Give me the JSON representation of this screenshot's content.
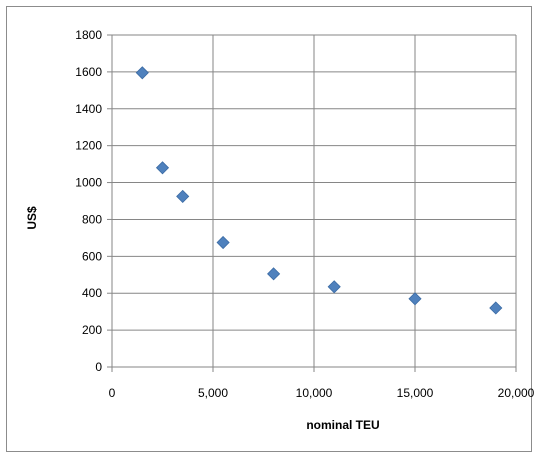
{
  "chart_data": {
    "type": "scatter",
    "xlabel": "nominal TEU",
    "ylabel": "US$",
    "xlim": [
      0,
      20000
    ],
    "ylim": [
      0,
      1800
    ],
    "x_ticks": [
      "0",
      "5,000",
      "10,000",
      "15,000",
      "20,000"
    ],
    "y_ticks": [
      "0",
      "200",
      "400",
      "600",
      "800",
      "1000",
      "1200",
      "1400",
      "1600",
      "1800"
    ],
    "grid": true,
    "legend": "none",
    "marker": "diamond",
    "marker_color": "#4f81bd",
    "series": [
      {
        "points": [
          {
            "x": 1500,
            "y": 1595
          },
          {
            "x": 2500,
            "y": 1080
          },
          {
            "x": 3500,
            "y": 925
          },
          {
            "x": 5500,
            "y": 675
          },
          {
            "x": 8000,
            "y": 505
          },
          {
            "x": 11000,
            "y": 435
          },
          {
            "x": 15000,
            "y": 370
          },
          {
            "x": 19000,
            "y": 320
          }
        ]
      }
    ]
  }
}
